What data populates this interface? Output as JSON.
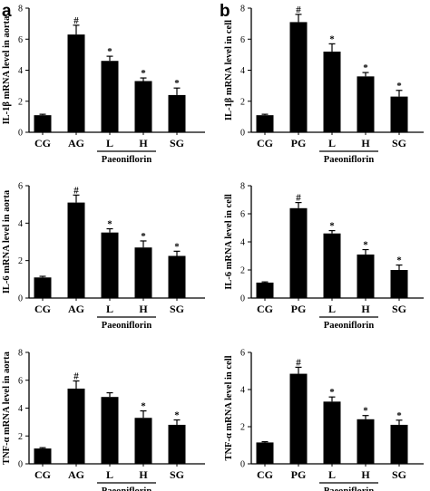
{
  "panel_labels": [
    "a",
    "b"
  ],
  "chart_data": [
    {
      "type": "bar",
      "categories": [
        "CG",
        "AG",
        "L",
        "H",
        "SG"
      ],
      "values": [
        1.1,
        6.3,
        4.6,
        3.3,
        2.4
      ],
      "errors": [
        0.06,
        0.6,
        0.3,
        0.2,
        0.45
      ],
      "significance": [
        "",
        "#",
        "*",
        "*",
        "*"
      ],
      "ylabel": "IL-1β mRNA level in aorta",
      "ylim": [
        0,
        8
      ],
      "yticks": [
        "0",
        "2",
        "4",
        "6",
        "8"
      ],
      "group_label": "Paeoniflorin",
      "group_categories": [
        "L",
        "H"
      ],
      "panel": "a"
    },
    {
      "type": "bar",
      "categories": [
        "CG",
        "PG",
        "L",
        "H",
        "SG"
      ],
      "values": [
        1.1,
        7.1,
        5.2,
        3.6,
        2.3
      ],
      "errors": [
        0.06,
        0.5,
        0.5,
        0.25,
        0.4
      ],
      "significance": [
        "",
        "#",
        "*",
        "*",
        "*"
      ],
      "ylabel": "IL-1β mRNA level in cell",
      "ylim": [
        0,
        8
      ],
      "yticks": [
        "0",
        "2",
        "4",
        "6",
        "8"
      ],
      "group_label": "Paeoniflorin",
      "group_categories": [
        "L",
        "H"
      ],
      "panel": "b"
    },
    {
      "type": "bar",
      "categories": [
        "CG",
        "AG",
        "L",
        "H",
        "SG"
      ],
      "values": [
        1.1,
        5.1,
        3.5,
        2.7,
        2.25
      ],
      "errors": [
        0.06,
        0.4,
        0.2,
        0.35,
        0.25
      ],
      "significance": [
        "",
        "#",
        "*",
        "*",
        "*"
      ],
      "ylabel": "IL-6 mRNA level in aorta",
      "ylim": [
        0,
        6
      ],
      "yticks": [
        "0",
        "2",
        "4",
        "6"
      ],
      "group_label": "Paeoniflorin",
      "group_categories": [
        "L",
        "H"
      ],
      "panel": ""
    },
    {
      "type": "bar",
      "categories": [
        "CG",
        "PG",
        "L",
        "H",
        "SG"
      ],
      "values": [
        1.1,
        6.4,
        4.6,
        3.1,
        2.0
      ],
      "errors": [
        0.05,
        0.4,
        0.2,
        0.35,
        0.35
      ],
      "significance": [
        "",
        "#",
        "*",
        "*",
        "*"
      ],
      "ylabel": "IL-6 mRNA level in cell",
      "ylim": [
        0,
        8
      ],
      "yticks": [
        "0",
        "2",
        "4",
        "6",
        "8"
      ],
      "group_label": "Paeoniflorin",
      "group_categories": [
        "L",
        "H"
      ],
      "panel": ""
    },
    {
      "type": "bar",
      "categories": [
        "CG",
        "AG",
        "L",
        "H",
        "SG"
      ],
      "values": [
        1.1,
        5.4,
        4.8,
        3.3,
        2.8
      ],
      "errors": [
        0.06,
        0.55,
        0.3,
        0.5,
        0.35
      ],
      "significance": [
        "",
        "#",
        "",
        "*",
        "*"
      ],
      "ylabel": "TNF-α mRNA level in aorta",
      "ylim": [
        0,
        8
      ],
      "yticks": [
        "0",
        "2",
        "4",
        "6",
        "8"
      ],
      "group_label": "Paeoniflorin",
      "group_categories": [
        "L",
        "H"
      ],
      "panel": ""
    },
    {
      "type": "bar",
      "categories": [
        "CG",
        "PG",
        "L",
        "H",
        "SG"
      ],
      "values": [
        1.15,
        4.85,
        3.35,
        2.4,
        2.1
      ],
      "errors": [
        0.04,
        0.35,
        0.25,
        0.2,
        0.25
      ],
      "significance": [
        "",
        "#",
        "*",
        "*",
        "*"
      ],
      "ylabel": "TNF-α mRNA level in cell",
      "ylim": [
        0,
        6
      ],
      "yticks": [
        "0",
        "2",
        "4",
        "6"
      ],
      "group_label": "Paeoniflorin",
      "group_categories": [
        "L",
        "H"
      ],
      "panel": ""
    }
  ]
}
